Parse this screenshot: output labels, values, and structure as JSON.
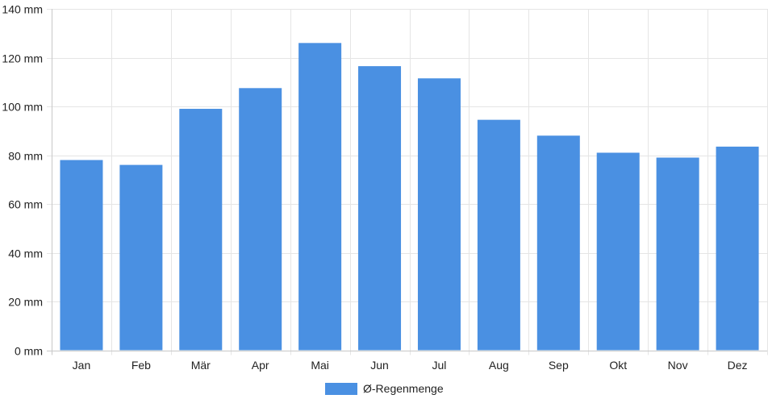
{
  "chart_data": {
    "type": "bar",
    "categories": [
      "Jan",
      "Feb",
      "Mär",
      "Apr",
      "Mai",
      "Jun",
      "Jul",
      "Aug",
      "Sep",
      "Okt",
      "Nov",
      "Dez"
    ],
    "series": [
      {
        "name": "Ø-Regenmenge",
        "values": [
          78,
          76,
          99,
          107.5,
          126,
          116.5,
          111.5,
          94.5,
          88,
          81,
          79,
          83.5
        ]
      }
    ],
    "ylim": [
      0,
      140
    ],
    "y_ticks": [
      0,
      20,
      40,
      60,
      80,
      100,
      120,
      140
    ],
    "y_tick_labels": [
      "0 mm",
      "20 mm",
      "40 mm",
      "60 mm",
      "80 mm",
      "100 mm",
      "120 mm",
      "140 mm"
    ],
    "grid": true,
    "legend": "bottom-center",
    "colors": {
      "bar": "#4a90e2",
      "grid": "#e5e5e5",
      "axis": "#c8c8c8",
      "text": "#222222"
    }
  }
}
